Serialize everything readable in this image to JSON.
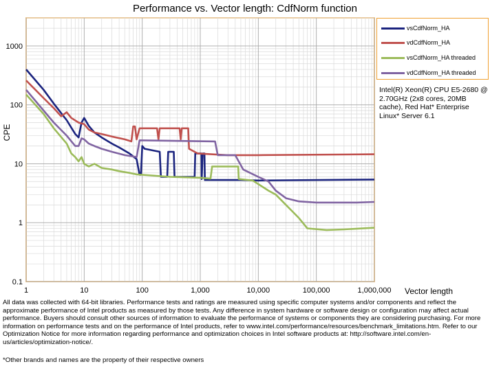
{
  "footer": {
    "disclaimer": "All data was collected with 64-bit libraries. Performance tests and ratings are measured using specific computer systems and/or components and reflect the approximate performance of Intel products as measured by those tests. Any difference in system hardware or software design or configuration may affect actual performance. Buyers should consult other sources of information to evaluate the performance of systems or components they are considering purchasing. For more information on performance tests and on the performance of Intel products, refer to www.intel.com/performance/resources/benchmark_limitations.htm. Refer to our Optimization Notice for more information regarding performance and optimization choices in Intel software products at: http://software.intel.com/en-us/articles/optimization-notice/.",
    "trademark_note": "*Other brands and names are the property of their respective owners"
  },
  "system_info": "Intel(R) Xeon(R) CPU E5-2680 @ 2.70GHz (2x8 cores, 20MB cache), Red Hat* Enterprise Linux* Server 6.1",
  "chart_data": {
    "type": "line",
    "title": "Performance vs. Vector length: CdfNorm function",
    "xlabel": "Vector length",
    "ylabel": "CPE",
    "xscale": "log",
    "yscale": "log",
    "xlim": [
      1,
      1000000
    ],
    "ylim": [
      0.1,
      3000
    ],
    "grid": true,
    "legend_position": "top-right",
    "x_ticks": [
      {
        "value": 1,
        "label": "1"
      },
      {
        "value": 10,
        "label": "10"
      },
      {
        "value": 100,
        "label": "100"
      },
      {
        "value": 1000,
        "label": "1,000"
      },
      {
        "value": 10000,
        "label": "10,000"
      },
      {
        "value": 100000,
        "label": "100,000"
      },
      {
        "value": 1000000,
        "label": "1,000,000"
      }
    ],
    "y_ticks": [
      {
        "value": 0.1,
        "label": "0.1"
      },
      {
        "value": 1,
        "label": "1"
      },
      {
        "value": 10,
        "label": "10"
      },
      {
        "value": 100,
        "label": "100"
      },
      {
        "value": 1000,
        "label": "1000"
      }
    ],
    "series": [
      {
        "name": "vsCdfNorm_HA",
        "color": "#1a237e",
        "points": [
          [
            1,
            400
          ],
          [
            2,
            180
          ],
          [
            3,
            105
          ],
          [
            5,
            55
          ],
          [
            7,
            32
          ],
          [
            8,
            28
          ],
          [
            9,
            50
          ],
          [
            10,
            60
          ],
          [
            12,
            44
          ],
          [
            15,
            34
          ],
          [
            20,
            28
          ],
          [
            30,
            22
          ],
          [
            40,
            19
          ],
          [
            60,
            15
          ],
          [
            80,
            12
          ],
          [
            90,
            6.5
          ],
          [
            95,
            6.5
          ],
          [
            100,
            20
          ],
          [
            110,
            18
          ],
          [
            200,
            16
          ],
          [
            210,
            6
          ],
          [
            270,
            6
          ],
          [
            280,
            16
          ],
          [
            350,
            16
          ],
          [
            360,
            6
          ],
          [
            800,
            6
          ],
          [
            820,
            15
          ],
          [
            1050,
            15
          ],
          [
            1060,
            5.5
          ],
          [
            1100,
            15
          ],
          [
            1180,
            15
          ],
          [
            1200,
            5.3
          ],
          [
            5000,
            5.3
          ],
          [
            10000,
            5.2
          ],
          [
            1000000,
            5.4
          ]
        ]
      },
      {
        "name": "vdCdfNorm_HA",
        "color": "#c0504d",
        "points": [
          [
            1,
            260
          ],
          [
            2,
            130
          ],
          [
            3,
            88
          ],
          [
            4,
            64
          ],
          [
            5,
            75
          ],
          [
            6,
            60
          ],
          [
            8,
            50
          ],
          [
            10,
            47
          ],
          [
            12,
            38
          ],
          [
            15,
            34
          ],
          [
            20,
            32
          ],
          [
            30,
            29
          ],
          [
            50,
            26
          ],
          [
            65,
            24
          ],
          [
            70,
            43
          ],
          [
            75,
            43
          ],
          [
            80,
            26
          ],
          [
            90,
            40
          ],
          [
            180,
            40
          ],
          [
            190,
            26
          ],
          [
            200,
            40
          ],
          [
            440,
            40
          ],
          [
            460,
            26
          ],
          [
            480,
            40
          ],
          [
            620,
            40
          ],
          [
            640,
            18
          ],
          [
            900,
            15
          ],
          [
            3000,
            14
          ],
          [
            10000,
            14
          ],
          [
            1000000,
            14.5
          ]
        ]
      },
      {
        "name": "vsCdfNorm_HA threaded",
        "color": "#9bbb59",
        "points": [
          [
            1,
            150
          ],
          [
            2,
            70
          ],
          [
            3,
            40
          ],
          [
            5,
            22
          ],
          [
            6,
            15
          ],
          [
            7,
            13
          ],
          [
            8,
            11
          ],
          [
            9,
            13
          ],
          [
            10,
            10
          ],
          [
            12,
            9
          ],
          [
            15,
            10
          ],
          [
            20,
            8.5
          ],
          [
            30,
            8
          ],
          [
            40,
            7.5
          ],
          [
            60,
            7
          ],
          [
            80,
            6.6
          ],
          [
            100,
            6.5
          ],
          [
            300,
            6
          ],
          [
            1000,
            5.8
          ],
          [
            1500,
            5.6
          ],
          [
            1600,
            9
          ],
          [
            4500,
            9
          ],
          [
            4600,
            5.5
          ],
          [
            8000,
            5.2
          ],
          [
            15000,
            3.5
          ],
          [
            20000,
            3
          ],
          [
            30000,
            2
          ],
          [
            50000,
            1.2
          ],
          [
            70000,
            0.8
          ],
          [
            150000,
            0.75
          ],
          [
            300000,
            0.77
          ],
          [
            1000000,
            0.82
          ]
        ]
      },
      {
        "name": "vdCdfNorm_HA threaded",
        "color": "#8064a2",
        "points": [
          [
            1,
            180
          ],
          [
            2,
            80
          ],
          [
            3,
            50
          ],
          [
            5,
            30
          ],
          [
            7,
            20
          ],
          [
            8,
            20
          ],
          [
            9,
            27
          ],
          [
            10,
            26
          ],
          [
            12,
            22
          ],
          [
            15,
            20
          ],
          [
            20,
            18
          ],
          [
            30,
            16
          ],
          [
            50,
            14
          ],
          [
            80,
            13
          ],
          [
            90,
            25
          ],
          [
            1800,
            24
          ],
          [
            2000,
            14
          ],
          [
            4000,
            14
          ],
          [
            5500,
            8
          ],
          [
            10000,
            6
          ],
          [
            15000,
            5
          ],
          [
            20000,
            3.5
          ],
          [
            30000,
            2.6
          ],
          [
            50000,
            2.3
          ],
          [
            100000,
            2.2
          ],
          [
            500000,
            2.2
          ],
          [
            1000000,
            2.25
          ]
        ]
      }
    ]
  }
}
